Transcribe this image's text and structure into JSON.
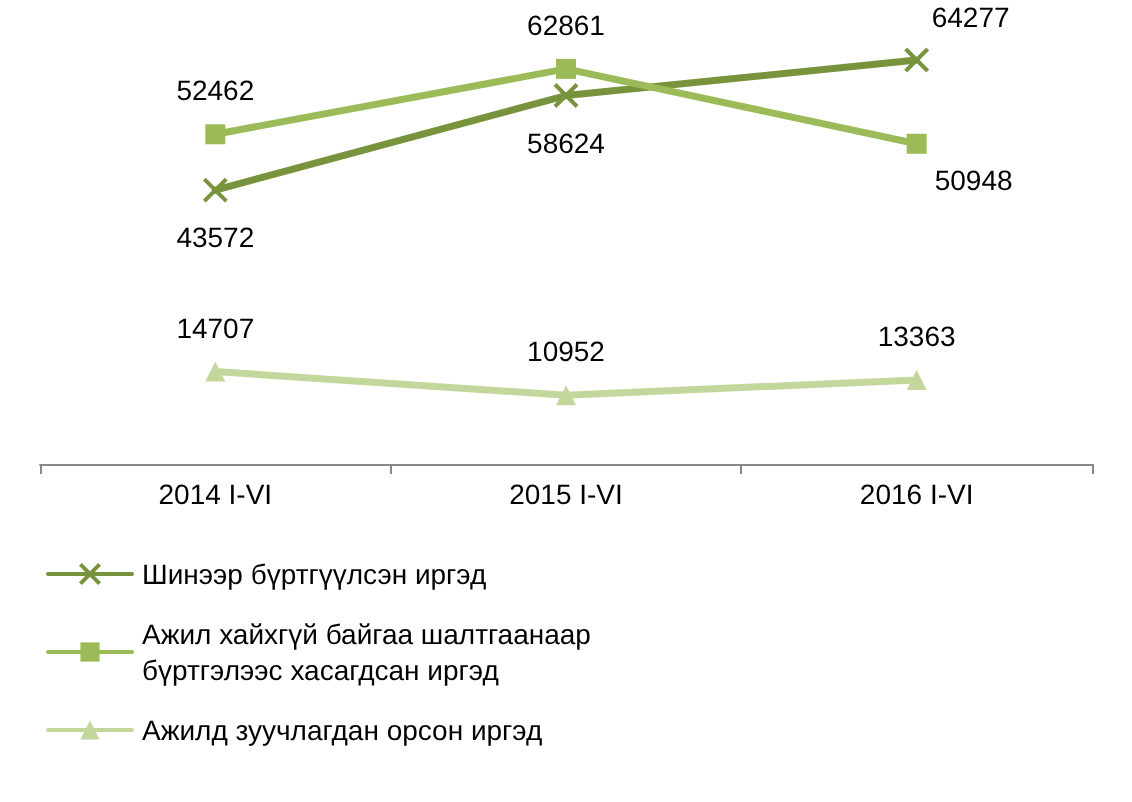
{
  "chart_data": {
    "type": "line",
    "categories": [
      "2014 I-VI",
      "2015 I-VI",
      "2016 I-VI"
    ],
    "series": [
      {
        "name": "Шинээр бүртгүүлсэн иргэд",
        "color": "#77933c",
        "marker": "cross",
        "values": [
          43572,
          58624,
          64277
        ]
      },
      {
        "name": "Ажил хайхгүй байгаа шалтгаанаар бүртгэлээс хасагдсан иргэд",
        "color": "#9bbb59",
        "marker": "square",
        "values": [
          52462,
          62861,
          50948
        ]
      },
      {
        "name": "Ажилд зуучлагдан орсон иргэд",
        "color": "#c3d69b",
        "marker": "triangle",
        "values": [
          14707,
          10952,
          13363
        ]
      }
    ],
    "data_labels": true,
    "grid": false,
    "legend": "bottom"
  }
}
